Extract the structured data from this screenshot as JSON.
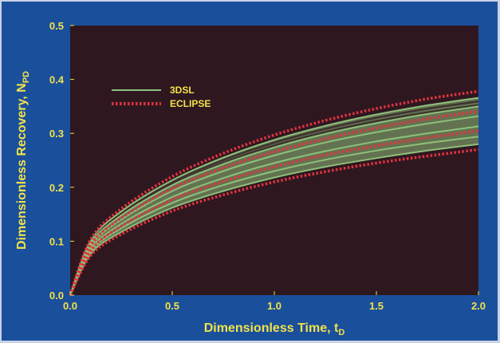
{
  "chart_data": {
    "type": "line",
    "xlabel": "Dimensionless Time, t",
    "xlabel_sub": "D",
    "ylabel": "Dimensionless Recovery, N",
    "ylabel_sub": "PD",
    "xlim": [
      0.0,
      2.0
    ],
    "ylim": [
      0.0,
      0.5
    ],
    "xticks": [
      "0.0",
      "0.5",
      "1.0",
      "1.5",
      "2.0"
    ],
    "yticks": [
      "0.0",
      "0.1",
      "0.2",
      "0.3",
      "0.4",
      "0.5"
    ],
    "legend_position": "upper-left",
    "colors": {
      "plot_bg": "#2f1720",
      "frame": "#1a4f9c",
      "text": "#f2e24a",
      "series_3dsl": "#8ec07a",
      "series_eclipse": "#e0343f"
    },
    "series": [
      {
        "name": "3DSL",
        "style": "solid",
        "curves": [
          {
            "x": [
              0,
              0.1,
              0.25,
              0.5,
              0.75,
              1.0,
              1.25,
              1.5,
              1.75,
              2.0
            ],
            "y": [
              0,
              0.1,
              0.155,
              0.213,
              0.255,
              0.288,
              0.314,
              0.335,
              0.352,
              0.366
            ]
          },
          {
            "x": [
              0,
              0.1,
              0.25,
              0.5,
              0.75,
              1.0,
              1.25,
              1.5,
              1.75,
              2.0
            ],
            "y": [
              0,
              0.095,
              0.148,
              0.204,
              0.243,
              0.274,
              0.299,
              0.319,
              0.336,
              0.35
            ]
          },
          {
            "x": [
              0,
              0.1,
              0.25,
              0.5,
              0.75,
              1.0,
              1.25,
              1.5,
              1.75,
              2.0
            ],
            "y": [
              0,
              0.09,
              0.14,
              0.193,
              0.23,
              0.259,
              0.283,
              0.302,
              0.318,
              0.332
            ]
          },
          {
            "x": [
              0,
              0.1,
              0.25,
              0.5,
              0.75,
              1.0,
              1.25,
              1.5,
              1.75,
              2.0
            ],
            "y": [
              0,
              0.085,
              0.132,
              0.182,
              0.217,
              0.245,
              0.267,
              0.285,
              0.3,
              0.313
            ]
          },
          {
            "x": [
              0,
              0.1,
              0.25,
              0.5,
              0.75,
              1.0,
              1.25,
              1.5,
              1.75,
              2.0
            ],
            "y": [
              0,
              0.08,
              0.124,
              0.171,
              0.204,
              0.23,
              0.251,
              0.268,
              0.282,
              0.294
            ]
          },
          {
            "x": [
              0,
              0.1,
              0.25,
              0.5,
              0.75,
              1.0,
              1.25,
              1.5,
              1.75,
              2.0
            ],
            "y": [
              0,
              0.076,
              0.117,
              0.162,
              0.193,
              0.218,
              0.238,
              0.254,
              0.268,
              0.28
            ]
          }
        ]
      },
      {
        "name": "ECLIPSE",
        "style": "dotted",
        "curves": [
          {
            "x": [
              0,
              0.1,
              0.25,
              0.5,
              0.75,
              1.0,
              1.25,
              1.5,
              1.75,
              2.0
            ],
            "y": [
              0,
              0.103,
              0.16,
              0.22,
              0.263,
              0.297,
              0.324,
              0.346,
              0.364,
              0.378
            ]
          },
          {
            "x": [
              0,
              0.1,
              0.25,
              0.5,
              0.75,
              1.0,
              1.25,
              1.5,
              1.75,
              2.0
            ],
            "y": [
              0,
              0.092,
              0.143,
              0.198,
              0.236,
              0.266,
              0.29,
              0.31,
              0.327,
              0.341
            ]
          },
          {
            "x": [
              0,
              0.1,
              0.25,
              0.5,
              0.75,
              1.0,
              1.25,
              1.5,
              1.75,
              2.0
            ],
            "y": [
              0,
              0.082,
              0.128,
              0.177,
              0.211,
              0.238,
              0.26,
              0.277,
              0.292,
              0.305
            ]
          },
          {
            "x": [
              0,
              0.1,
              0.25,
              0.5,
              0.75,
              1.0,
              1.25,
              1.5,
              1.75,
              2.0
            ],
            "y": [
              0,
              0.073,
              0.113,
              0.156,
              0.186,
              0.21,
              0.229,
              0.245,
              0.258,
              0.27
            ]
          }
        ]
      }
    ]
  }
}
